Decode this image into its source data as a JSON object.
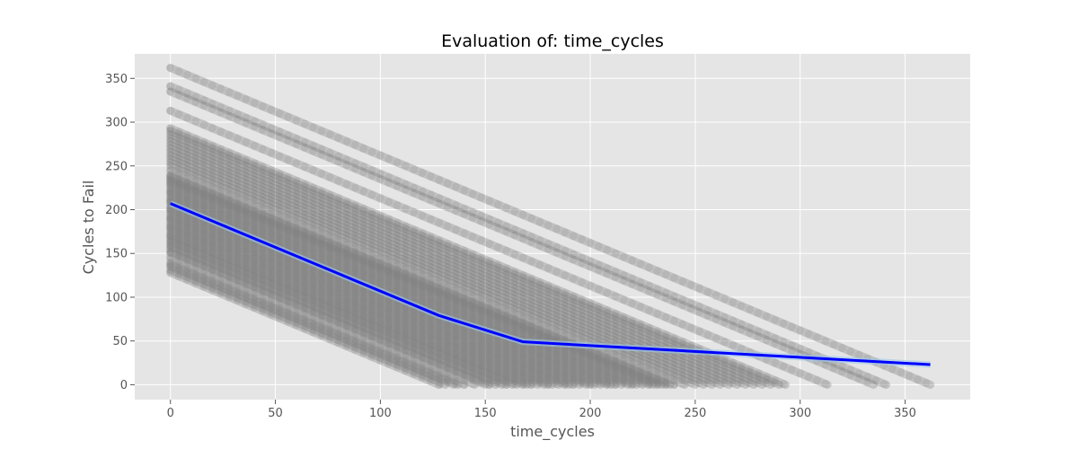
{
  "chart_data": {
    "type": "scatter",
    "title": "Evaluation of: time_cycles",
    "xlabel": "time_cycles",
    "ylabel": "Cycles to Fail",
    "xlim": [
      -17,
      381
    ],
    "ylim": [
      -17,
      378
    ],
    "xticks": [
      0,
      50,
      100,
      150,
      200,
      250,
      300,
      350
    ],
    "yticks": [
      0,
      50,
      100,
      150,
      200,
      250,
      300,
      350
    ],
    "grid": true,
    "legend": "none",
    "colors": {
      "background": "#e5e5e5",
      "grid": "#ffffff",
      "scatter": "#808080",
      "trend": "#0000ff",
      "band": "#9ec9ec"
    },
    "series": [
      {
        "kind": "scatter",
        "description_of_points": "each unit forms a descending diagonal line y = max_life - x, running from (0, max_life) to (max_life, 0)",
        "unit_max_lives": [
          128,
          131,
          135,
          137,
          140,
          145,
          150,
          152,
          155,
          158,
          160,
          163,
          165,
          168,
          170,
          172,
          175,
          178,
          180,
          182,
          185,
          188,
          190,
          192,
          195,
          198,
          200,
          202,
          205,
          208,
          210,
          212,
          215,
          218,
          220,
          222,
          225,
          228,
          230,
          232,
          234,
          236,
          238,
          240,
          245,
          250,
          254,
          258,
          262,
          266,
          270,
          274,
          278,
          282,
          286,
          290,
          293,
          313,
          335,
          341,
          362
        ]
      },
      {
        "kind": "line",
        "x": [
          0,
          128,
          168,
          362
        ],
        "y": [
          207,
          79,
          49,
          23
        ]
      }
    ]
  }
}
